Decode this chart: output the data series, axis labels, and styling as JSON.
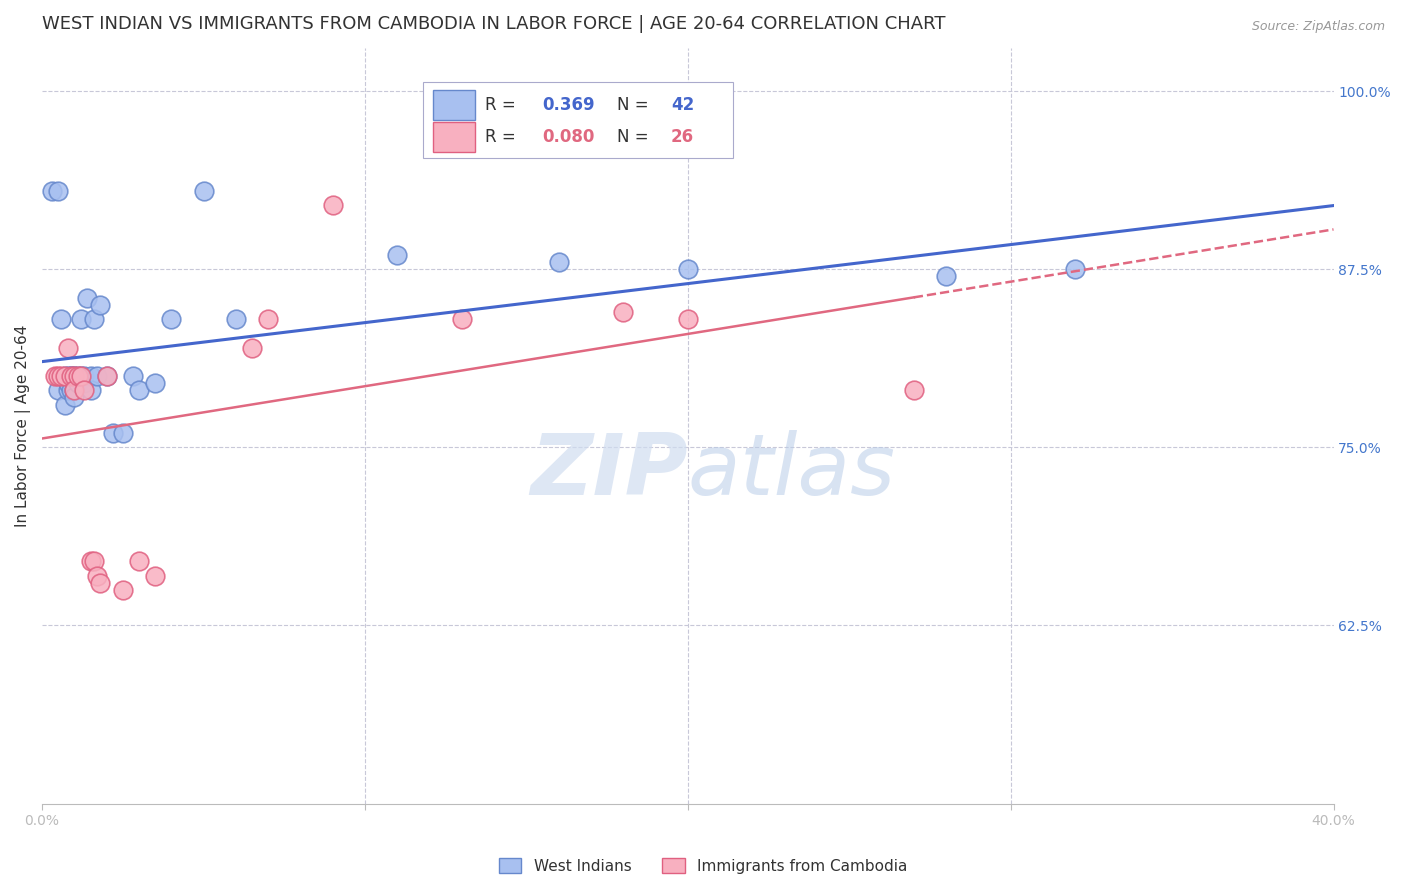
{
  "title": "WEST INDIAN VS IMMIGRANTS FROM CAMBODIA IN LABOR FORCE | AGE 20-64 CORRELATION CHART",
  "source": "Source: ZipAtlas.com",
  "ylabel": "In Labor Force | Age 20-64",
  "xlim": [
    0.0,
    0.4
  ],
  "ylim": [
    0.5,
    1.03
  ],
  "yticks_right": [
    1.0,
    0.875,
    0.75,
    0.625
  ],
  "ytick_labels_right": [
    "100.0%",
    "87.5%",
    "75.0%",
    "62.5%"
  ],
  "grid_color": "#c8c8d8",
  "background_color": "#ffffff",
  "blue_scatter_face": "#a8c0f0",
  "blue_scatter_edge": "#6688cc",
  "pink_scatter_face": "#f8b0c0",
  "pink_scatter_edge": "#e06080",
  "blue_line_color": "#4466cc",
  "pink_line_color": "#e06880",
  "watermark_color": "#d0ddf0",
  "title_color": "#333333",
  "tick_color": "#4477cc",
  "axis_color": "#bbbbbb",
  "west_indians_x": [
    0.003,
    0.005,
    0.005,
    0.006,
    0.007,
    0.007,
    0.008,
    0.008,
    0.008,
    0.009,
    0.009,
    0.009,
    0.01,
    0.01,
    0.01,
    0.01,
    0.011,
    0.011,
    0.012,
    0.012,
    0.013,
    0.013,
    0.014,
    0.015,
    0.015,
    0.016,
    0.017,
    0.018,
    0.02,
    0.022,
    0.025,
    0.028,
    0.03,
    0.035,
    0.04,
    0.05,
    0.06,
    0.11,
    0.16,
    0.2,
    0.28,
    0.32
  ],
  "west_indians_y": [
    0.93,
    0.93,
    0.79,
    0.84,
    0.8,
    0.78,
    0.8,
    0.79,
    0.795,
    0.8,
    0.79,
    0.8,
    0.8,
    0.8,
    0.79,
    0.785,
    0.8,
    0.795,
    0.84,
    0.8,
    0.8,
    0.795,
    0.855,
    0.8,
    0.79,
    0.84,
    0.8,
    0.85,
    0.8,
    0.76,
    0.76,
    0.8,
    0.79,
    0.795,
    0.84,
    0.93,
    0.84,
    0.885,
    0.88,
    0.875,
    0.87,
    0.875
  ],
  "cambodia_x": [
    0.004,
    0.005,
    0.006,
    0.007,
    0.008,
    0.009,
    0.01,
    0.01,
    0.011,
    0.012,
    0.013,
    0.015,
    0.016,
    0.017,
    0.018,
    0.02,
    0.025,
    0.03,
    0.035,
    0.065,
    0.07,
    0.09,
    0.13,
    0.18,
    0.2,
    0.27
  ],
  "cambodia_y": [
    0.8,
    0.8,
    0.8,
    0.8,
    0.82,
    0.8,
    0.8,
    0.79,
    0.8,
    0.8,
    0.79,
    0.67,
    0.67,
    0.66,
    0.655,
    0.8,
    0.65,
    0.67,
    0.66,
    0.82,
    0.84,
    0.92,
    0.84,
    0.845,
    0.84,
    0.79
  ]
}
